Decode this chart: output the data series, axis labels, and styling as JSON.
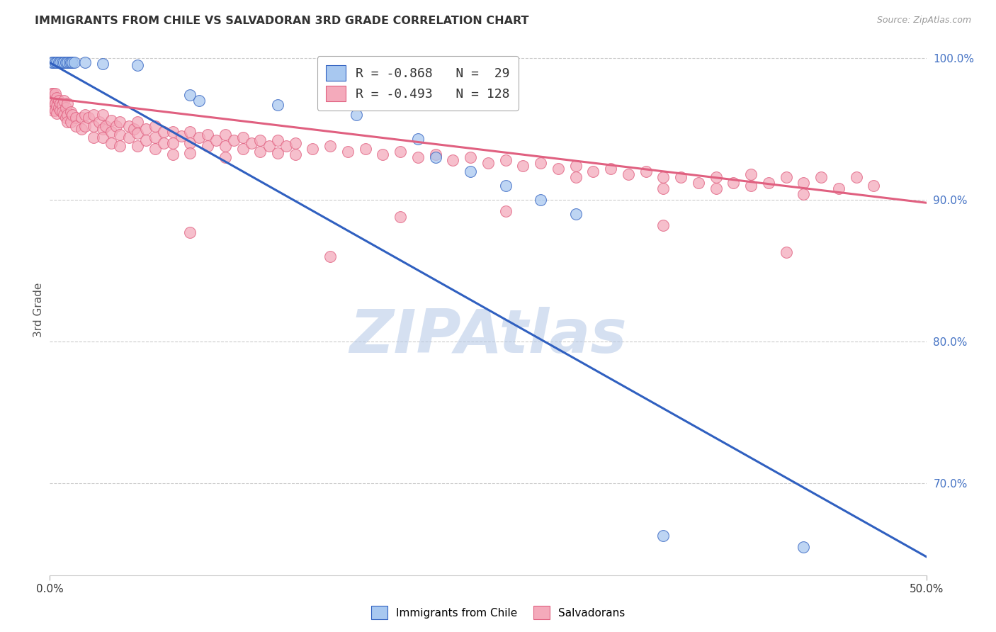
{
  "title": "IMMIGRANTS FROM CHILE VS SALVADORAN 3RD GRADE CORRELATION CHART",
  "source": "Source: ZipAtlas.com",
  "ylabel": "3rd Grade",
  "xlim": [
    0.0,
    0.5
  ],
  "ylim": [
    0.635,
    1.01
  ],
  "yticks": [
    0.7,
    0.8,
    0.9,
    1.0
  ],
  "ytick_labels": [
    "70.0%",
    "80.0%",
    "90.0%",
    "100.0%"
  ],
  "xtick_positions": [
    0.0,
    0.5
  ],
  "xtick_labels": [
    "0.0%",
    "50.0%"
  ],
  "blue_R": -0.868,
  "blue_N": 29,
  "pink_R": -0.493,
  "pink_N": 128,
  "blue_color": "#A8C8F0",
  "pink_color": "#F4AABB",
  "blue_line_color": "#3060C0",
  "pink_line_color": "#E06080",
  "watermark": "ZIPAtlas",
  "watermark_color_r": 180,
  "watermark_color_g": 200,
  "watermark_color_b": 230,
  "blue_scatter": [
    [
      0.001,
      0.997
    ],
    [
      0.002,
      0.997
    ],
    [
      0.003,
      0.997
    ],
    [
      0.004,
      0.997
    ],
    [
      0.005,
      0.997
    ],
    [
      0.006,
      0.997
    ],
    [
      0.007,
      0.997
    ],
    [
      0.008,
      0.997
    ],
    [
      0.009,
      0.997
    ],
    [
      0.01,
      0.997
    ],
    [
      0.011,
      0.997
    ],
    [
      0.012,
      0.997
    ],
    [
      0.013,
      0.997
    ],
    [
      0.014,
      0.997
    ],
    [
      0.02,
      0.997
    ],
    [
      0.03,
      0.996
    ],
    [
      0.05,
      0.995
    ],
    [
      0.08,
      0.974
    ],
    [
      0.085,
      0.97
    ],
    [
      0.13,
      0.967
    ],
    [
      0.175,
      0.96
    ],
    [
      0.21,
      0.943
    ],
    [
      0.22,
      0.93
    ],
    [
      0.24,
      0.92
    ],
    [
      0.26,
      0.91
    ],
    [
      0.28,
      0.9
    ],
    [
      0.3,
      0.89
    ],
    [
      0.35,
      0.663
    ],
    [
      0.43,
      0.655
    ]
  ],
  "pink_scatter": [
    [
      0.001,
      0.975
    ],
    [
      0.001,
      0.972
    ],
    [
      0.001,
      0.968
    ],
    [
      0.001,
      0.965
    ],
    [
      0.002,
      0.975
    ],
    [
      0.002,
      0.97
    ],
    [
      0.002,
      0.965
    ],
    [
      0.002,
      0.963
    ],
    [
      0.003,
      0.975
    ],
    [
      0.003,
      0.968
    ],
    [
      0.003,
      0.963
    ],
    [
      0.004,
      0.972
    ],
    [
      0.004,
      0.966
    ],
    [
      0.004,
      0.961
    ],
    [
      0.005,
      0.97
    ],
    [
      0.005,
      0.965
    ],
    [
      0.006,
      0.968
    ],
    [
      0.006,
      0.963
    ],
    [
      0.007,
      0.967
    ],
    [
      0.007,
      0.962
    ],
    [
      0.008,
      0.97
    ],
    [
      0.008,
      0.96
    ],
    [
      0.009,
      0.965
    ],
    [
      0.009,
      0.958
    ],
    [
      0.01,
      0.968
    ],
    [
      0.01,
      0.96
    ],
    [
      0.01,
      0.955
    ],
    [
      0.012,
      0.962
    ],
    [
      0.012,
      0.955
    ],
    [
      0.013,
      0.96
    ],
    [
      0.015,
      0.958
    ],
    [
      0.015,
      0.952
    ],
    [
      0.018,
      0.958
    ],
    [
      0.018,
      0.95
    ],
    [
      0.02,
      0.96
    ],
    [
      0.02,
      0.952
    ],
    [
      0.022,
      0.958
    ],
    [
      0.025,
      0.96
    ],
    [
      0.025,
      0.952
    ],
    [
      0.025,
      0.944
    ],
    [
      0.028,
      0.955
    ],
    [
      0.03,
      0.96
    ],
    [
      0.03,
      0.95
    ],
    [
      0.03,
      0.944
    ],
    [
      0.032,
      0.952
    ],
    [
      0.035,
      0.956
    ],
    [
      0.035,
      0.948
    ],
    [
      0.035,
      0.94
    ],
    [
      0.038,
      0.952
    ],
    [
      0.04,
      0.955
    ],
    [
      0.04,
      0.946
    ],
    [
      0.04,
      0.938
    ],
    [
      0.045,
      0.952
    ],
    [
      0.045,
      0.944
    ],
    [
      0.048,
      0.95
    ],
    [
      0.05,
      0.955
    ],
    [
      0.05,
      0.947
    ],
    [
      0.05,
      0.938
    ],
    [
      0.055,
      0.95
    ],
    [
      0.055,
      0.942
    ],
    [
      0.06,
      0.952
    ],
    [
      0.06,
      0.944
    ],
    [
      0.06,
      0.936
    ],
    [
      0.065,
      0.948
    ],
    [
      0.065,
      0.94
    ],
    [
      0.07,
      0.948
    ],
    [
      0.07,
      0.94
    ],
    [
      0.07,
      0.932
    ],
    [
      0.075,
      0.945
    ],
    [
      0.08,
      0.948
    ],
    [
      0.08,
      0.94
    ],
    [
      0.08,
      0.933
    ],
    [
      0.085,
      0.944
    ],
    [
      0.09,
      0.946
    ],
    [
      0.09,
      0.938
    ],
    [
      0.095,
      0.942
    ],
    [
      0.1,
      0.946
    ],
    [
      0.1,
      0.938
    ],
    [
      0.1,
      0.93
    ],
    [
      0.105,
      0.942
    ],
    [
      0.11,
      0.944
    ],
    [
      0.11,
      0.936
    ],
    [
      0.115,
      0.94
    ],
    [
      0.12,
      0.942
    ],
    [
      0.12,
      0.934
    ],
    [
      0.125,
      0.938
    ],
    [
      0.13,
      0.942
    ],
    [
      0.13,
      0.933
    ],
    [
      0.135,
      0.938
    ],
    [
      0.14,
      0.94
    ],
    [
      0.14,
      0.932
    ],
    [
      0.15,
      0.936
    ],
    [
      0.16,
      0.938
    ],
    [
      0.17,
      0.934
    ],
    [
      0.18,
      0.936
    ],
    [
      0.19,
      0.932
    ],
    [
      0.2,
      0.934
    ],
    [
      0.21,
      0.93
    ],
    [
      0.22,
      0.932
    ],
    [
      0.23,
      0.928
    ],
    [
      0.24,
      0.93
    ],
    [
      0.25,
      0.926
    ],
    [
      0.26,
      0.928
    ],
    [
      0.27,
      0.924
    ],
    [
      0.28,
      0.926
    ],
    [
      0.29,
      0.922
    ],
    [
      0.3,
      0.924
    ],
    [
      0.3,
      0.916
    ],
    [
      0.31,
      0.92
    ],
    [
      0.32,
      0.922
    ],
    [
      0.33,
      0.918
    ],
    [
      0.34,
      0.92
    ],
    [
      0.35,
      0.916
    ],
    [
      0.35,
      0.908
    ],
    [
      0.36,
      0.916
    ],
    [
      0.37,
      0.912
    ],
    [
      0.38,
      0.916
    ],
    [
      0.38,
      0.908
    ],
    [
      0.39,
      0.912
    ],
    [
      0.4,
      0.918
    ],
    [
      0.4,
      0.91
    ],
    [
      0.41,
      0.912
    ],
    [
      0.42,
      0.916
    ],
    [
      0.43,
      0.912
    ],
    [
      0.43,
      0.904
    ],
    [
      0.44,
      0.916
    ],
    [
      0.45,
      0.908
    ],
    [
      0.46,
      0.916
    ],
    [
      0.47,
      0.91
    ],
    [
      0.35,
      0.882
    ],
    [
      0.42,
      0.863
    ],
    [
      0.2,
      0.888
    ],
    [
      0.26,
      0.892
    ],
    [
      0.08,
      0.877
    ],
    [
      0.16,
      0.86
    ]
  ],
  "blue_line_x": [
    0.0,
    0.5
  ],
  "blue_line_y": [
    0.997,
    0.648
  ],
  "pink_line_x": [
    0.0,
    0.5
  ],
  "pink_line_y": [
    0.972,
    0.898
  ]
}
